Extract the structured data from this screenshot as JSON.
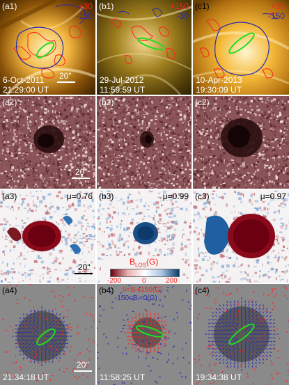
{
  "rows": [
    {
      "panels": [
        {
          "label": "(a1)",
          "date": "6-Oct-2011",
          "time": "21:29:00 UT",
          "scale": "20\""
        },
        {
          "label": "(b1)",
          "date": "29-Jul-2012",
          "time": "11:59:59 UT",
          "contour_red": "+150",
          "contour_blue": "-30"
        },
        {
          "label": "(c1)",
          "date": "10-Apr-2013",
          "time": "19:30:09 UT",
          "contour_red": "+30",
          "contour_blue": "-150"
        }
      ]
    },
    {
      "panels": [
        {
          "label": "(a2)",
          "scale": "20\""
        },
        {
          "label": "(b2)"
        },
        {
          "label": "(c2)"
        }
      ]
    },
    {
      "panels": [
        {
          "label": "(a3)",
          "mu": "μ=0.76",
          "scale": "20\""
        },
        {
          "label": "(b3)",
          "mu": "μ=0.99"
        },
        {
          "label": "(c3)",
          "mu": "μ=0.97"
        }
      ]
    },
    {
      "panels": [
        {
          "label": "(a4)",
          "time": "21:34:18 UT",
          "scale": "20\""
        },
        {
          "label": "(b4)",
          "time": "11:58:25 UT",
          "legend_red": "0<Bᵣ<150(G)",
          "legend_blue": "-150<Bᵣ<0(G)"
        },
        {
          "label": "(c4)",
          "time": "19:34:38 UT"
        }
      ]
    }
  ],
  "a1_contours": {
    "red": "+30",
    "blue": "-150"
  },
  "colorbar": {
    "title": "B",
    "title_sub": "LOS",
    "title_unit": "(G)",
    "ticks": [
      "-200",
      "0",
      "200"
    ]
  },
  "colors": {
    "red": "#ff2020",
    "blue": "#2a2ab0",
    "green": "#22dd22"
  }
}
